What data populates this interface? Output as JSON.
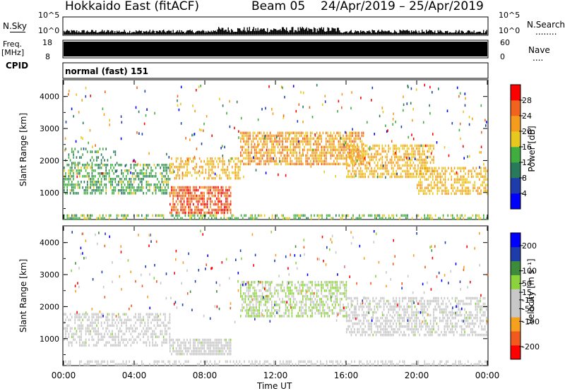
{
  "header": {
    "station": "Hokkaido East (fitACF)",
    "beam": "Beam 05",
    "dates": "24/Apr/2019 – 25/Apr/2019"
  },
  "meta_panels": {
    "nsky_label": "N.Sky",
    "nsky_top": "10^5",
    "nsky_bottom": "10^0",
    "nsearch_label": "N.Search",
    "nsearch_dots": "........",
    "nsearch_top": "10^5",
    "nsearch_bottom": "10^0",
    "freq_label_1": "Freq.",
    "freq_label_2": "[MHz]",
    "freq_top": "18",
    "freq_bottom": "8",
    "nave_label": "Nave",
    "nave_dots": "....",
    "nave_top": "60",
    "nave_bottom": "0",
    "cpid_label": "CPID",
    "cpid_value": "normal (fast) 151"
  },
  "chart_data": [
    {
      "type": "heatmap",
      "title": "",
      "xlabel": "Time UT",
      "ylabel": "Slant Range [km]",
      "x_ticks": [
        "00:00",
        "04:00",
        "08:00",
        "12:00",
        "16:00",
        "20:00",
        "00:00"
      ],
      "xlim_hours": [
        0,
        24
      ],
      "y_ticks": [
        1000,
        2000,
        3000,
        4000
      ],
      "ylim": [
        180,
        4500
      ],
      "colorbar": {
        "label": "Power [dB]",
        "ticks": [
          4,
          8,
          12,
          16,
          20,
          24,
          28
        ],
        "range": [
          0,
          32
        ],
        "colors": [
          "#0000ff",
          "#1e3caa",
          "#287a5a",
          "#3fae3f",
          "#e8c81e",
          "#f59c1e",
          "#f0641e",
          "#ff0000"
        ]
      },
      "regions": [
        {
          "t": [
            0.0,
            6.0
          ],
          "range": [
            1000,
            1900
          ],
          "value": 13,
          "density": 0.55
        },
        {
          "t": [
            0.0,
            3.0
          ],
          "range": [
            1900,
            2400
          ],
          "value": 12,
          "density": 0.25
        },
        {
          "t": [
            6.0,
            9.5
          ],
          "range": [
            400,
            1200
          ],
          "value": 26,
          "density": 0.75
        },
        {
          "t": [
            6.0,
            10.0
          ],
          "range": [
            1400,
            2100
          ],
          "value": 20,
          "density": 0.5
        },
        {
          "t": [
            10.0,
            17.0
          ],
          "range": [
            1900,
            2900
          ],
          "value": 22,
          "density": 0.7
        },
        {
          "t": [
            16.0,
            21.0
          ],
          "range": [
            1500,
            2500
          ],
          "value": 20,
          "density": 0.6
        },
        {
          "t": [
            20.0,
            24.0
          ],
          "range": [
            1000,
            1800
          ],
          "value": 20,
          "density": 0.55
        },
        {
          "t": [
            0.0,
            24.0
          ],
          "range": [
            180,
            320
          ],
          "value": 15,
          "density": 0.45
        }
      ]
    },
    {
      "type": "heatmap",
      "title": "",
      "xlabel": "Time UT",
      "ylabel": "Slant Range [km]",
      "x_ticks": [
        "00:00",
        "04:00",
        "08:00",
        "12:00",
        "16:00",
        "20:00",
        "00:00"
      ],
      "xlim_hours": [
        0,
        24
      ],
      "y_ticks": [
        1000,
        2000,
        3000,
        4000
      ],
      "ylim": [
        180,
        4500
      ],
      "colorbar": {
        "label": "Velocity [m s⁻¹]",
        "ticks": [
          200,
          100,
          50,
          15,
          -15,
          -50,
          -100,
          -200
        ],
        "range": [
          -250,
          250
        ],
        "colors": [
          "#ff0000",
          "#f05a1e",
          "#f5a01e",
          "#c8c8c8",
          "#c8c8c8",
          "#8cd23c",
          "#3c8c3c",
          "#1e3caa",
          "#0000ff"
        ]
      },
      "regions": [
        {
          "t": [
            0.0,
            6.0
          ],
          "range": [
            800,
            1800
          ],
          "value": 0,
          "density": 0.5
        },
        {
          "t": [
            6.0,
            9.5
          ],
          "range": [
            500,
            1000
          ],
          "value": 0,
          "density": 0.8
        },
        {
          "t": [
            10.0,
            16.0
          ],
          "range": [
            1700,
            2800
          ],
          "value": 30,
          "density": 0.55
        },
        {
          "t": [
            16.0,
            24.0
          ],
          "range": [
            1100,
            2300
          ],
          "value": 0,
          "density": 0.55
        },
        {
          "t": [
            0.0,
            24.0
          ],
          "range": [
            180,
            320
          ],
          "value": -40,
          "density": 0.45
        }
      ]
    }
  ]
}
